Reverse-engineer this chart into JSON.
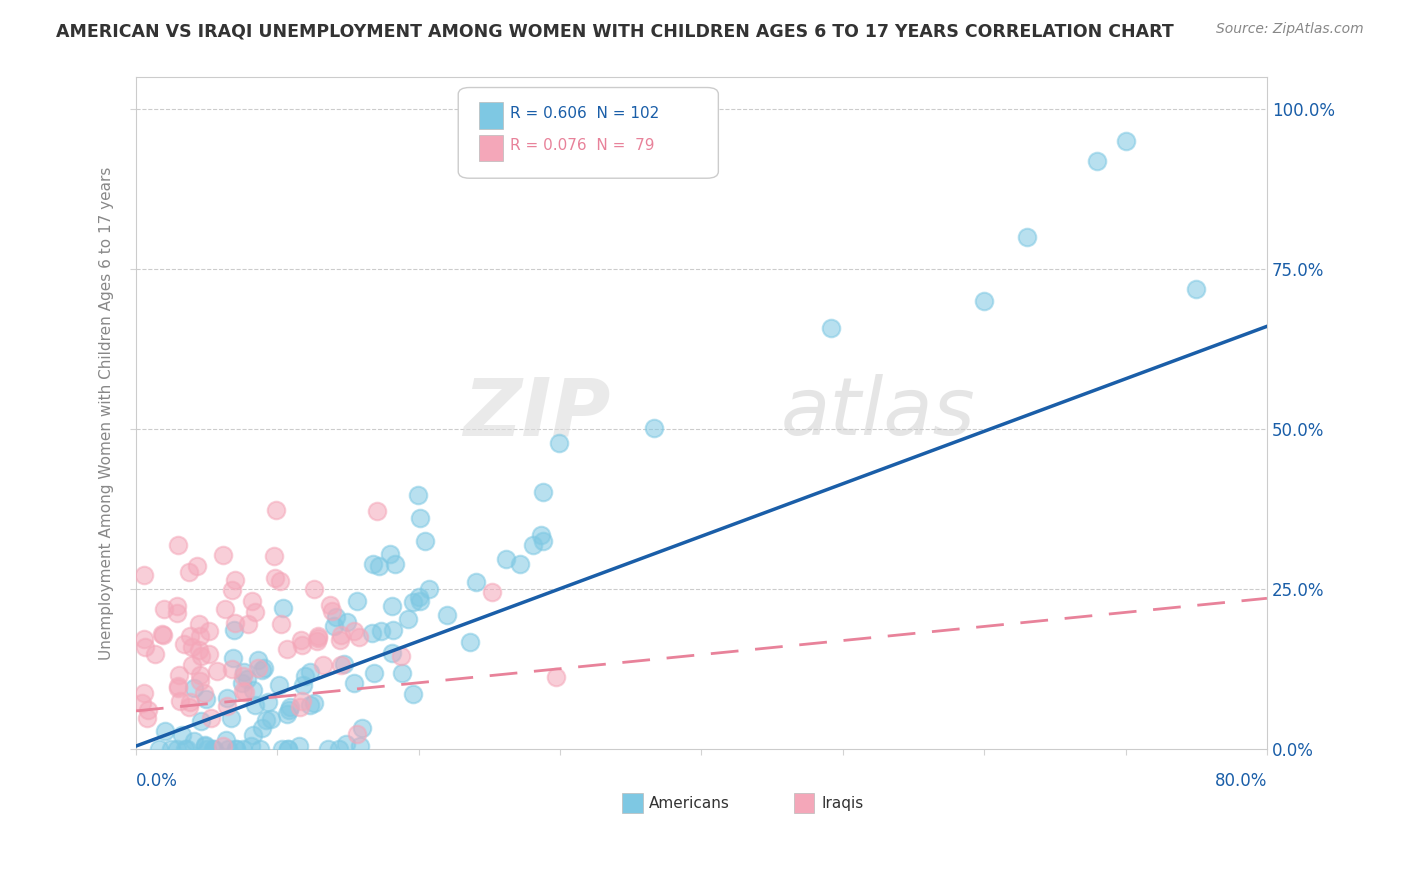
{
  "title": "AMERICAN VS IRAQI UNEMPLOYMENT AMONG WOMEN WITH CHILDREN AGES 6 TO 17 YEARS CORRELATION CHART",
  "source": "Source: ZipAtlas.com",
  "ylabel": "Unemployment Among Women with Children Ages 6 to 17 years",
  "right_yticks": [
    0.0,
    0.25,
    0.5,
    0.75,
    1.0
  ],
  "right_yticklabels": [
    "0.0%",
    "25.0%",
    "50.0%",
    "75.0%",
    "100.0%"
  ],
  "legend_american_R": "0.606",
  "legend_american_N": "102",
  "legend_iraqi_R": "0.076",
  "legend_iraqi_N": "79",
  "american_color": "#7EC8E3",
  "iraqi_color": "#F4A7B9",
  "american_line_color": "#1A5EA8",
  "iraqi_line_color": "#E8829A",
  "background_color": "#FFFFFF",
  "watermark_zip": "ZIP",
  "watermark_atlas": "atlas",
  "xlim": [
    0.0,
    0.8
  ],
  "ylim": [
    0.0,
    1.05
  ],
  "seed_american": 42,
  "seed_iraqi": 7
}
